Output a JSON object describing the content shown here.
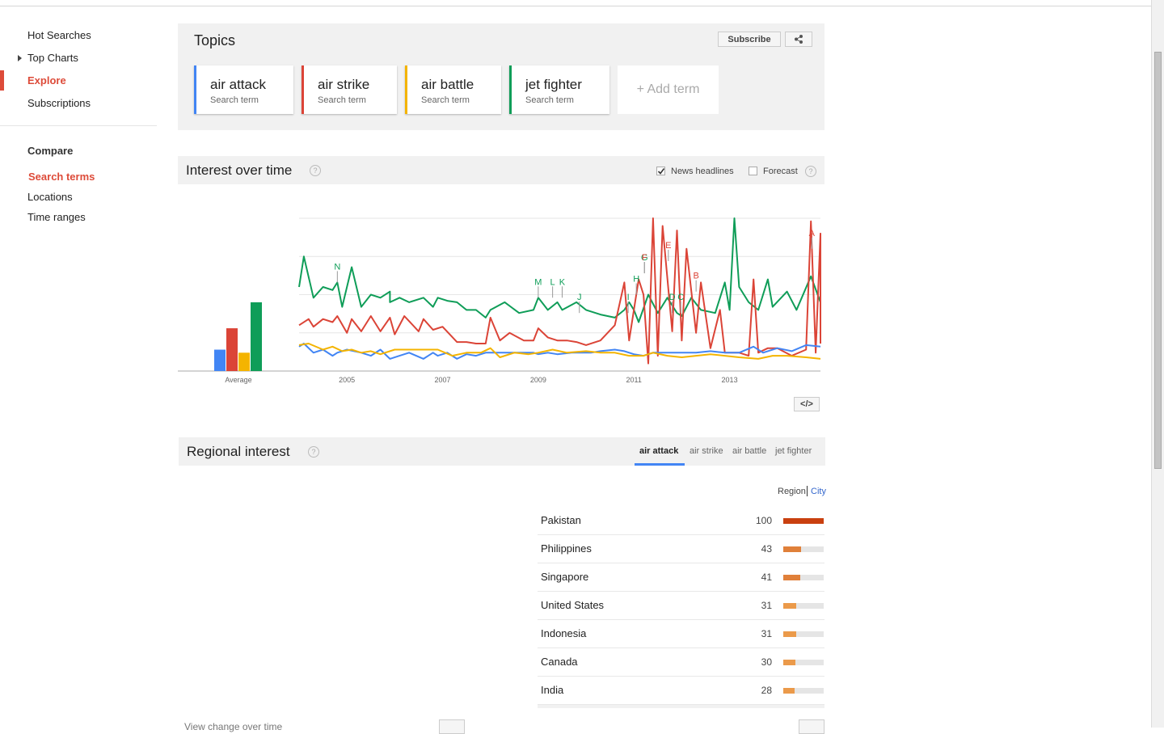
{
  "sidebar": {
    "items": [
      "Hot Searches",
      "Top Charts",
      "Explore",
      "Subscriptions"
    ],
    "compare_heading": "Compare",
    "compare_items": [
      "Search terms",
      "Locations",
      "Time ranges"
    ]
  },
  "topics": {
    "title": "Topics",
    "subscribe_label": "Subscribe",
    "add_term_label": "+ Add term",
    "terms": [
      {
        "name": "air attack",
        "sub": "Search term",
        "color": "#4285f4"
      },
      {
        "name": "air strike",
        "sub": "Search term",
        "color": "#db4437"
      },
      {
        "name": "air battle",
        "sub": "Search term",
        "color": "#f4b400"
      },
      {
        "name": "jet fighter",
        "sub": "Search term",
        "color": "#0f9d58"
      }
    ]
  },
  "interest": {
    "title": "Interest over time",
    "news_headlines_label": "News headlines",
    "news_headlines_checked": true,
    "forecast_label": "Forecast",
    "forecast_checked": false,
    "embed_label": "</>"
  },
  "chart_data": {
    "type": "line",
    "average_label": "Average",
    "averages": [
      {
        "name": "air attack",
        "value": 14,
        "color": "#4285f4"
      },
      {
        "name": "air strike",
        "value": 28,
        "color": "#db4437"
      },
      {
        "name": "air battle",
        "value": 12,
        "color": "#f4b400"
      },
      {
        "name": "jet fighter",
        "value": 45,
        "color": "#0f9d58"
      }
    ],
    "x_ticks": [
      "2005",
      "2007",
      "2009",
      "2011",
      "2013"
    ],
    "x_range": [
      2004.0,
      2014.9
    ],
    "ylim": [
      0,
      100
    ],
    "series": [
      {
        "name": "jet fighter",
        "color": "#0f9d58",
        "points": [
          [
            2004.0,
            55
          ],
          [
            2004.1,
            75
          ],
          [
            2004.3,
            48
          ],
          [
            2004.5,
            55
          ],
          [
            2004.7,
            53
          ],
          [
            2004.8,
            58
          ],
          [
            2004.9,
            42
          ],
          [
            2005.1,
            68
          ],
          [
            2005.2,
            55
          ],
          [
            2005.3,
            42
          ],
          [
            2005.5,
            50
          ],
          [
            2005.7,
            48
          ],
          [
            2005.9,
            52
          ],
          [
            2005.9,
            45
          ],
          [
            2006.1,
            48
          ],
          [
            2006.3,
            45
          ],
          [
            2006.6,
            48
          ],
          [
            2006.8,
            42
          ],
          [
            2006.9,
            48
          ],
          [
            2007.1,
            46
          ],
          [
            2007.3,
            45
          ],
          [
            2007.5,
            40
          ],
          [
            2007.7,
            40
          ],
          [
            2007.9,
            35
          ],
          [
            2008.0,
            40
          ],
          [
            2008.3,
            45
          ],
          [
            2008.6,
            38
          ],
          [
            2008.9,
            40
          ],
          [
            2009.0,
            48
          ],
          [
            2009.2,
            40
          ],
          [
            2009.4,
            45
          ],
          [
            2009.5,
            40
          ],
          [
            2009.8,
            45
          ],
          [
            2010.0,
            40
          ],
          [
            2010.3,
            37
          ],
          [
            2010.6,
            35
          ],
          [
            2010.8,
            40
          ],
          [
            2010.9,
            45
          ],
          [
            2011.0,
            40
          ],
          [
            2011.1,
            32
          ],
          [
            2011.3,
            50
          ],
          [
            2011.5,
            38
          ],
          [
            2011.7,
            48
          ],
          [
            2011.9,
            38
          ],
          [
            2012.0,
            36
          ],
          [
            2012.2,
            48
          ],
          [
            2012.4,
            40
          ],
          [
            2012.7,
            38
          ],
          [
            2012.9,
            58
          ],
          [
            2013.0,
            40
          ],
          [
            2013.1,
            100
          ],
          [
            2013.2,
            55
          ],
          [
            2013.4,
            45
          ],
          [
            2013.6,
            40
          ],
          [
            2013.8,
            60
          ],
          [
            2013.9,
            42
          ],
          [
            2014.2,
            52
          ],
          [
            2014.4,
            40
          ],
          [
            2014.7,
            62
          ],
          [
            2014.9,
            45
          ]
        ]
      },
      {
        "name": "air strike",
        "color": "#db4437",
        "points": [
          [
            2004.0,
            30
          ],
          [
            2004.2,
            34
          ],
          [
            2004.3,
            29
          ],
          [
            2004.5,
            34
          ],
          [
            2004.7,
            32
          ],
          [
            2004.8,
            36
          ],
          [
            2005.0,
            25
          ],
          [
            2005.1,
            34
          ],
          [
            2005.3,
            26
          ],
          [
            2005.5,
            36
          ],
          [
            2005.7,
            26
          ],
          [
            2005.9,
            35
          ],
          [
            2006.0,
            24
          ],
          [
            2006.2,
            36
          ],
          [
            2006.5,
            26
          ],
          [
            2006.6,
            34
          ],
          [
            2006.8,
            27
          ],
          [
            2007.0,
            29
          ],
          [
            2007.3,
            19
          ],
          [
            2007.5,
            19
          ],
          [
            2007.7,
            18
          ],
          [
            2007.9,
            18
          ],
          [
            2008.0,
            35
          ],
          [
            2008.2,
            20
          ],
          [
            2008.4,
            25
          ],
          [
            2008.7,
            20
          ],
          [
            2008.9,
            20
          ],
          [
            2009.0,
            28
          ],
          [
            2009.2,
            22
          ],
          [
            2009.4,
            20
          ],
          [
            2009.6,
            20
          ],
          [
            2009.8,
            19
          ],
          [
            2010.0,
            17
          ],
          [
            2010.3,
            20
          ],
          [
            2010.6,
            30
          ],
          [
            2010.8,
            58
          ],
          [
            2010.9,
            20
          ],
          [
            2011.1,
            60
          ],
          [
            2011.2,
            50
          ],
          [
            2011.3,
            5
          ],
          [
            2011.4,
            100
          ],
          [
            2011.5,
            10
          ],
          [
            2011.6,
            95
          ],
          [
            2011.8,
            26
          ],
          [
            2011.9,
            92
          ],
          [
            2012.0,
            20
          ],
          [
            2012.1,
            80
          ],
          [
            2012.3,
            25
          ],
          [
            2012.4,
            58
          ],
          [
            2012.6,
            15
          ],
          [
            2012.8,
            40
          ],
          [
            2012.9,
            12
          ],
          [
            2013.2,
            12
          ],
          [
            2013.4,
            10
          ],
          [
            2013.5,
            60
          ],
          [
            2013.6,
            12
          ],
          [
            2013.8,
            15
          ],
          [
            2014.0,
            15
          ],
          [
            2014.3,
            10
          ],
          [
            2014.6,
            14
          ],
          [
            2014.7,
            98
          ],
          [
            2014.8,
            12
          ],
          [
            2014.9,
            90
          ],
          [
            2014.9,
            18
          ]
        ]
      },
      {
        "name": "air attack",
        "color": "#4285f4",
        "points": [
          [
            2004.0,
            16
          ],
          [
            2004.1,
            18
          ],
          [
            2004.3,
            12
          ],
          [
            2004.5,
            14
          ],
          [
            2004.7,
            10
          ],
          [
            2004.8,
            12
          ],
          [
            2005.0,
            14
          ],
          [
            2005.3,
            12
          ],
          [
            2005.5,
            10
          ],
          [
            2005.7,
            14
          ],
          [
            2005.9,
            8
          ],
          [
            2006.1,
            10
          ],
          [
            2006.3,
            12
          ],
          [
            2006.6,
            8
          ],
          [
            2006.8,
            12
          ],
          [
            2006.9,
            10
          ],
          [
            2007.1,
            12
          ],
          [
            2007.3,
            8
          ],
          [
            2007.5,
            11
          ],
          [
            2007.7,
            10
          ],
          [
            2007.9,
            12
          ],
          [
            2008.3,
            12
          ],
          [
            2008.6,
            12
          ],
          [
            2008.9,
            12
          ],
          [
            2009.0,
            11
          ],
          [
            2009.2,
            12
          ],
          [
            2009.4,
            11
          ],
          [
            2009.7,
            12
          ],
          [
            2009.9,
            12
          ],
          [
            2010.1,
            12
          ],
          [
            2010.3,
            13
          ],
          [
            2010.6,
            14
          ],
          [
            2010.8,
            13
          ],
          [
            2011.0,
            11
          ],
          [
            2011.2,
            10
          ],
          [
            2011.4,
            12
          ],
          [
            2011.6,
            12
          ],
          [
            2011.8,
            12
          ],
          [
            2012.0,
            12
          ],
          [
            2012.3,
            12
          ],
          [
            2012.6,
            13
          ],
          [
            2012.9,
            12
          ],
          [
            2013.2,
            12
          ],
          [
            2013.5,
            16
          ],
          [
            2013.7,
            12
          ],
          [
            2014.0,
            15
          ],
          [
            2014.3,
            13
          ],
          [
            2014.6,
            17
          ],
          [
            2014.9,
            16
          ]
        ]
      },
      {
        "name": "air battle",
        "color": "#f4b400",
        "points": [
          [
            2004.0,
            17
          ],
          [
            2004.2,
            18
          ],
          [
            2004.5,
            14
          ],
          [
            2004.7,
            16
          ],
          [
            2004.9,
            13
          ],
          [
            2005.1,
            14
          ],
          [
            2005.3,
            12
          ],
          [
            2005.5,
            13
          ],
          [
            2005.7,
            11
          ],
          [
            2006.0,
            14
          ],
          [
            2006.3,
            14
          ],
          [
            2006.6,
            14
          ],
          [
            2006.9,
            14
          ],
          [
            2007.2,
            10
          ],
          [
            2007.5,
            12
          ],
          [
            2007.8,
            12
          ],
          [
            2008.0,
            15
          ],
          [
            2008.2,
            9
          ],
          [
            2008.5,
            12
          ],
          [
            2008.8,
            11
          ],
          [
            2009.0,
            12
          ],
          [
            2009.3,
            14
          ],
          [
            2009.6,
            12
          ],
          [
            2010.0,
            13
          ],
          [
            2010.3,
            12
          ],
          [
            2010.6,
            12
          ],
          [
            2010.9,
            10
          ],
          [
            2011.2,
            10
          ],
          [
            2011.4,
            12
          ],
          [
            2011.7,
            10
          ],
          [
            2012.0,
            9
          ],
          [
            2012.3,
            10
          ],
          [
            2012.6,
            11
          ],
          [
            2012.9,
            10
          ],
          [
            2013.2,
            9
          ],
          [
            2013.6,
            8
          ],
          [
            2013.9,
            10
          ],
          [
            2014.2,
            10
          ],
          [
            2014.6,
            9
          ],
          [
            2014.9,
            8
          ]
        ]
      }
    ],
    "annotations": [
      {
        "label": "N",
        "x": 2004.8,
        "y": 58,
        "color": "#0f9d58"
      },
      {
        "label": "M",
        "x": 2009.0,
        "y": 48,
        "color": "#0f9d58"
      },
      {
        "label": "L",
        "x": 2009.3,
        "y": 48,
        "color": "#0f9d58"
      },
      {
        "label": "K",
        "x": 2009.5,
        "y": 48,
        "color": "#0f9d58"
      },
      {
        "label": "J",
        "x": 2009.86,
        "y": 38,
        "color": "#0f9d58"
      },
      {
        "label": "I",
        "x": 2010.88,
        "y": 38,
        "color": "#0f9d58"
      },
      {
        "label": "H",
        "x": 2011.05,
        "y": 50,
        "color": "#0f9d58"
      },
      {
        "label": "G",
        "x": 2011.22,
        "y": 64,
        "color": "#0f9d58"
      },
      {
        "label": "F",
        "x": 2011.22,
        "y": 64,
        "color": "#db4437"
      },
      {
        "label": "E",
        "x": 2011.72,
        "y": 72,
        "color": "#db4437"
      },
      {
        "label": "D",
        "x": 2011.8,
        "y": 38,
        "color": "#0f9d58"
      },
      {
        "label": "C",
        "x": 2011.98,
        "y": 38,
        "color": "#0f9d58"
      },
      {
        "label": "B",
        "x": 2012.3,
        "y": 52,
        "color": "#db4437"
      },
      {
        "label": "A",
        "x": 2014.72,
        "y": 80,
        "color": "#db4437"
      }
    ]
  },
  "regional": {
    "title": "Regional interest",
    "tabs": [
      "air attack",
      "air strike",
      "air battle",
      "jet fighter"
    ],
    "active_tab": "air attack",
    "region_label": "Region",
    "city_label": "City",
    "rows": [
      {
        "name": "Pakistan",
        "value": 100,
        "color": "#c9400f"
      },
      {
        "name": "Philippines",
        "value": 43,
        "color": "#e0803a"
      },
      {
        "name": "Singapore",
        "value": 41,
        "color": "#e0803a"
      },
      {
        "name": "United States",
        "value": 31,
        "color": "#eb9a4a"
      },
      {
        "name": "Indonesia",
        "value": 31,
        "color": "#eb9a4a"
      },
      {
        "name": "Canada",
        "value": 30,
        "color": "#eb9a4a"
      },
      {
        "name": "India",
        "value": 28,
        "color": "#eb9a4a"
      }
    ],
    "view_change_label": "View change over time"
  }
}
